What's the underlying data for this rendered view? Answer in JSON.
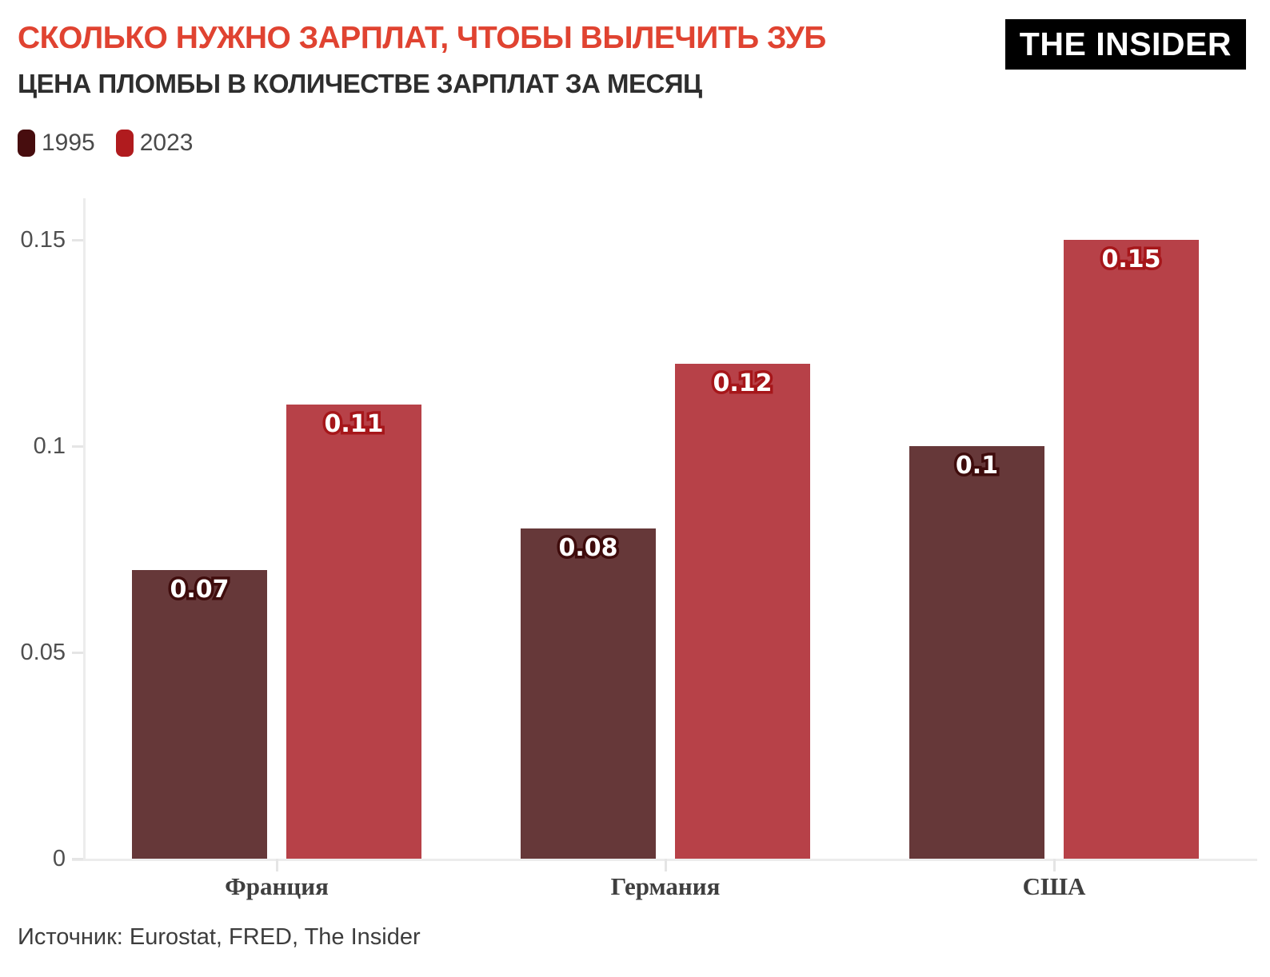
{
  "header": {
    "title": "СКОЛЬКО НУЖНО ЗАРПЛАТ, ЧТОБЫ ВЫЛЕЧИТЬ ЗУБ",
    "subtitle": "ЦЕНА ПЛОМБЫ В КОЛИЧЕСТВЕ ЗАРПЛАТ ЗА МЕСЯЦ",
    "logo": "THE INSIDER",
    "title_color": "#e04331",
    "logo_bg": "#000000",
    "logo_fg": "#ffffff"
  },
  "footer": {
    "source": "Источник: Eurostat, FRED, The Insider"
  },
  "chart_data": {
    "type": "bar",
    "categories": [
      "Франция",
      "Германия",
      "США"
    ],
    "series": [
      {
        "name": "1995",
        "values": [
          0.07,
          0.08,
          0.1
        ],
        "labels": [
          "0.07",
          "0.08",
          "0.1"
        ],
        "bar_color": "#663839",
        "legend_color": "#470d0e",
        "label_outline": "#3f0c0c"
      },
      {
        "name": "2023",
        "values": [
          0.11,
          0.12,
          0.15
        ],
        "labels": [
          "0.11",
          "0.12",
          "0.15"
        ],
        "bar_color": "#b74148",
        "legend_color": "#b01b1e",
        "label_outline": "#a6161a"
      }
    ],
    "title": "СКОЛЬКО НУЖНО ЗАРПЛАТ, ЧТОБЫ ВЫЛЕЧИТЬ ЗУБ",
    "subtitle": "ЦЕНА ПЛОМБЫ В КОЛИЧЕСТВЕ ЗАРПЛАТ ЗА МЕСЯЦ",
    "xlabel": "",
    "ylabel": "",
    "ylim": [
      0,
      0.16
    ],
    "yticks": [
      {
        "value": 0,
        "label": "0"
      },
      {
        "value": 0.05,
        "label": "0.05"
      },
      {
        "value": 0.1,
        "label": "0.1"
      },
      {
        "value": 0.15,
        "label": "0.15"
      }
    ],
    "grid": false,
    "legend_position": "top-left",
    "value_labels_inside_bar_top": true
  }
}
